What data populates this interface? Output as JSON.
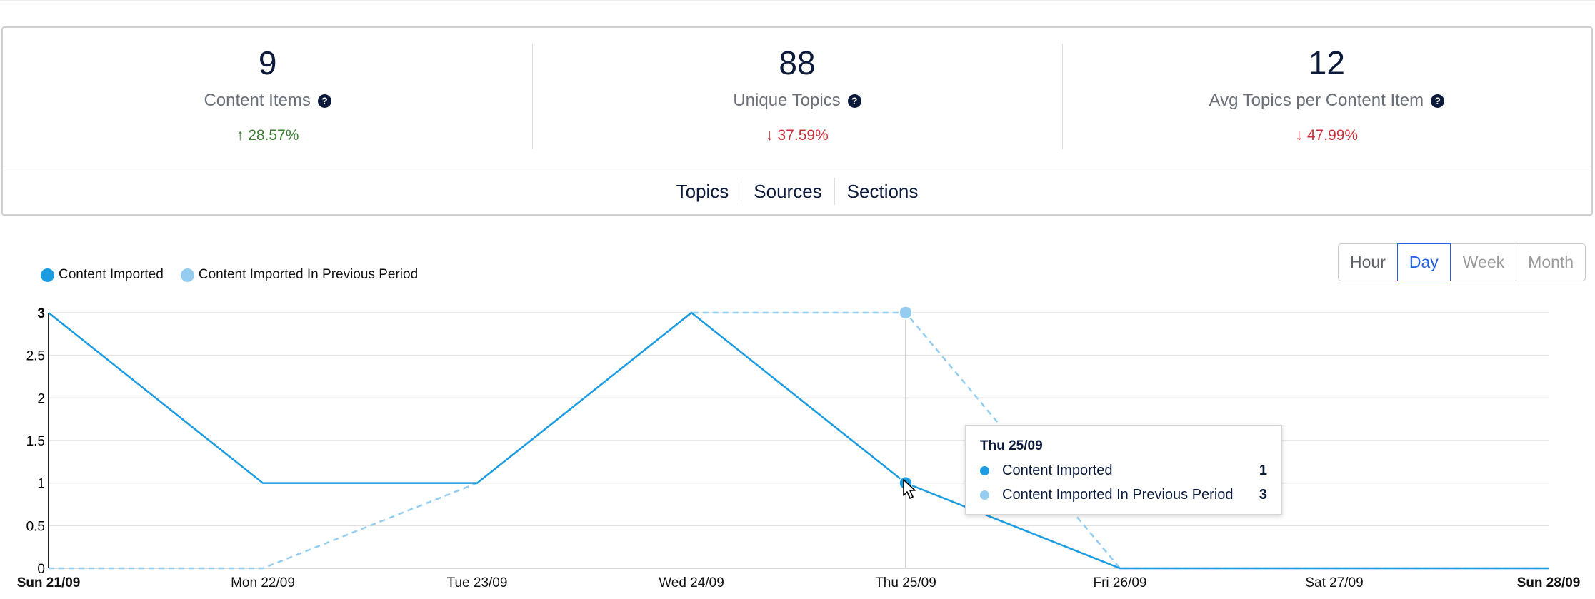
{
  "stats": [
    {
      "value": "9",
      "label": "Content Items",
      "change": "28.57%",
      "direction": "up"
    },
    {
      "value": "88",
      "label": "Unique Topics",
      "change": "37.59%",
      "direction": "down"
    },
    {
      "value": "12",
      "label": "Avg Topics per Content Item",
      "change": "47.99%",
      "direction": "down"
    }
  ],
  "icons": {
    "help": "question-circle-icon",
    "up": "arrow-up-icon",
    "down": "arrow-down-icon",
    "cursor": "mouse-pointer-icon"
  },
  "arrows": {
    "up": "↑",
    "down": "↓"
  },
  "tabs": [
    "Topics",
    "Sources",
    "Sections"
  ],
  "range_buttons": {
    "options": [
      "Hour",
      "Day",
      "Week",
      "Month"
    ],
    "selected": "Day"
  },
  "colors": {
    "current": "#1b9be0",
    "previous": "#94cdf0",
    "up": "#3b7d33",
    "down": "#c8313a",
    "accent": "#1f5fe0"
  },
  "tooltip": {
    "title": "Thu 25/09",
    "rows": [
      {
        "label": "Content Imported",
        "value": "1"
      },
      {
        "label": "Content Imported In Previous Period",
        "value": "3"
      }
    ]
  },
  "chart_data": {
    "type": "line",
    "categories": [
      "Sun 21/09",
      "Mon 22/09",
      "Tue 23/09",
      "Wed 24/09",
      "Thu 25/09",
      "Fri 26/09",
      "Sat 27/09",
      "Sun 28/09"
    ],
    "series": [
      {
        "name": "Content Imported",
        "values": [
          3,
          1,
          1,
          3,
          1,
          0,
          0,
          0
        ],
        "color": "#1b9be0",
        "dashed": false
      },
      {
        "name": "Content Imported In Previous Period",
        "values": [
          0,
          0,
          1,
          3,
          3,
          0,
          0,
          0
        ],
        "color": "#94cdf0",
        "dashed": true
      }
    ],
    "yticks": [
      "0",
      "0.5",
      "1",
      "1.5",
      "2",
      "2.5",
      "3"
    ],
    "ylim": [
      0,
      3
    ],
    "grid": true,
    "legend": "top-left",
    "highlight_index": 4
  }
}
